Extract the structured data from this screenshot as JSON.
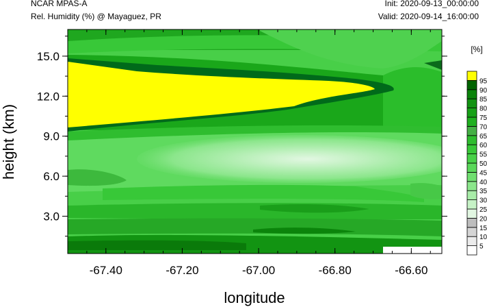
{
  "header": {
    "model": "NCAR MPAS-A",
    "field": "Rel. Humidity (%) @ Mayaguez, PR",
    "init": "Init: 2020-09-13_00:00:00",
    "valid": "Valid: 2020-09-14_16:00:00"
  },
  "chart_data": {
    "type": "heatmap",
    "title": "Rel. Humidity (%) @ Mayaguez, PR",
    "xlabel": "longitude",
    "ylabel": "height (km)",
    "xlim": [
      -67.5,
      -66.52
    ],
    "ylim": [
      0.2,
      17.0
    ],
    "x_ticks": [
      -67.4,
      -67.2,
      -67.0,
      -66.8,
      -66.6
    ],
    "x_tick_labels": [
      "-67.40",
      "-67.20",
      "-67.00",
      "-66.80",
      "-66.60"
    ],
    "y_ticks": [
      3.0,
      6.0,
      9.0,
      12.0,
      15.0
    ],
    "y_tick_labels": [
      "3.0",
      "6.0",
      "9.0",
      "12.0",
      "15.0"
    ],
    "colorbar": {
      "unit_label": "[%]",
      "levels": [
        5,
        10,
        15,
        20,
        25,
        30,
        35,
        40,
        45,
        50,
        55,
        60,
        65,
        70,
        75,
        80,
        85,
        90,
        95
      ],
      "colors": [
        "#ffffff",
        "#ececec",
        "#d5d5d5",
        "#bdbdbd",
        "#e2f7e2",
        "#c6f2c6",
        "#a8eca8",
        "#8be68b",
        "#70df70",
        "#5ad85a",
        "#48d148",
        "#38c838",
        "#2fbd2f",
        "#45b045",
        "#1fb01f",
        "#17a117",
        "#119311",
        "#0b840b",
        "#006400",
        "#ffff00"
      ]
    },
    "regions_description_values": {
      "upper_saturated_layer_pct": 95,
      "upper_layer_height_km": [
        9.5,
        14.5
      ],
      "midlevel_dry_min_pct": 25,
      "midlevel_dry_height_km": [
        6.5,
        8.0
      ]
    }
  }
}
